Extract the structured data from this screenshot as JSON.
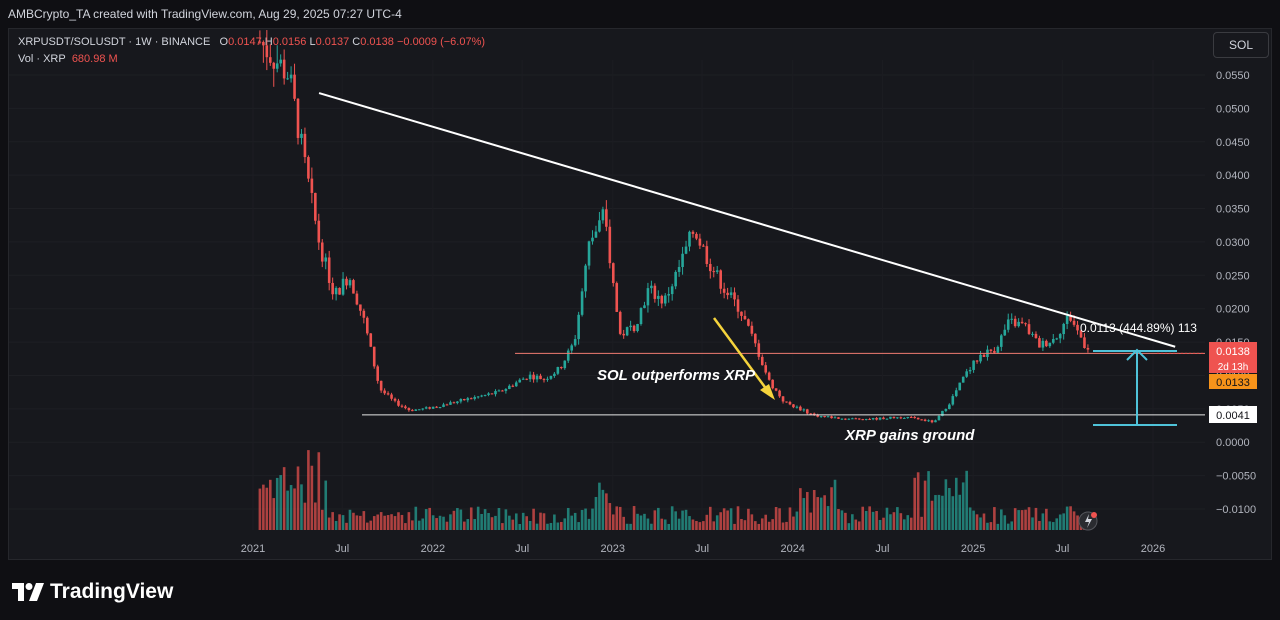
{
  "header": {
    "attribution": "AMBCrypto_TA created with TradingView.com, Aug 29, 2025 07:27 UTC-4"
  },
  "legend": {
    "symbol": "XRPUSDT/SOLUSDT · 1W · BINANCE",
    "o_label": "O",
    "o_value": "0.0147",
    "h_label": "H",
    "h_value": "0.0156",
    "l_label": "L",
    "l_value": "0.0137",
    "c_label": "C",
    "c_value": "0.0138",
    "change": "−0.0009 (−6.07%)",
    "vol_label": "Vol · XRP",
    "vol_value": "680.98 M"
  },
  "symbol_button": "SOL",
  "annotations": {
    "sol_outperforms": "SOL outperforms XRP",
    "xrp_gains": "XRP gains ground",
    "measure": "0.0113 (444.89%) 113"
  },
  "price_tags": {
    "last": "0.0138",
    "countdown": "2d 13h",
    "other": "0.0133",
    "support": "0.0041"
  },
  "brand": "TradingView",
  "colors": {
    "up": "#26a69a",
    "down": "#ef5350",
    "trend": "#ffffff",
    "measure": "#4fc3d9",
    "arrow": "#f5d33c"
  },
  "chart_data": {
    "type": "candlestick",
    "y_ticks": [
      "0.0550",
      "0.0500",
      "0.0450",
      "0.0400",
      "0.0350",
      "0.0300",
      "0.0250",
      "0.0200",
      "0.0150",
      "0.0100",
      "0.0050",
      "0.0000",
      "−0.0050",
      "−0.0100"
    ],
    "x_ticks": [
      "2021",
      "Jul",
      "2022",
      "Jul",
      "2023",
      "Jul",
      "2024",
      "Jul",
      "2025",
      "Jul",
      "2026"
    ],
    "ylim": [
      -0.0115,
      0.06
    ],
    "series": [
      {
        "name": "price",
        "points": [
          [
            "2021-01",
            0.06
          ],
          [
            "2021-03",
            0.055
          ],
          [
            "2021-04",
            0.042
          ],
          [
            "2021-05",
            0.03
          ],
          [
            "2021-06",
            0.022
          ],
          [
            "2021-07",
            0.025
          ],
          [
            "2021-08",
            0.018
          ],
          [
            "2021-09",
            0.008
          ],
          [
            "2021-10",
            0.006
          ],
          [
            "2021-11",
            0.0048
          ],
          [
            "2021-12",
            0.005
          ],
          [
            "2022-01",
            0.0055
          ],
          [
            "2022-03",
            0.0065
          ],
          [
            "2022-05",
            0.0075
          ],
          [
            "2022-07",
            0.01
          ],
          [
            "2022-08",
            0.0095
          ],
          [
            "2022-09",
            0.011
          ],
          [
            "2022-10",
            0.015
          ],
          [
            "2022-11",
            0.03
          ],
          [
            "2022-12",
            0.034
          ],
          [
            "2023-01",
            0.016
          ],
          [
            "2023-02",
            0.0175
          ],
          [
            "2023-03",
            0.023
          ],
          [
            "2023-04",
            0.021
          ],
          [
            "2023-05",
            0.026
          ],
          [
            "2023-06",
            0.032
          ],
          [
            "2023-07",
            0.027
          ],
          [
            "2023-08",
            0.023
          ],
          [
            "2023-09",
            0.02
          ],
          [
            "2023-10",
            0.015
          ],
          [
            "2023-11",
            0.009
          ],
          [
            "2023-12",
            0.006
          ],
          [
            "2024-01",
            0.005
          ],
          [
            "2024-02",
            0.004
          ],
          [
            "2024-04",
            0.0035
          ],
          [
            "2024-06",
            0.0035
          ],
          [
            "2024-08",
            0.0038
          ],
          [
            "2024-10",
            0.003
          ],
          [
            "2024-11",
            0.006
          ],
          [
            "2024-12",
            0.01
          ],
          [
            "2025-01",
            0.013
          ],
          [
            "2025-02",
            0.014
          ],
          [
            "2025-03",
            0.018
          ],
          [
            "2025-04",
            0.0175
          ],
          [
            "2025-05",
            0.0145
          ],
          [
            "2025-06",
            0.0155
          ],
          [
            "2025-07",
            0.019
          ],
          [
            "2025-08",
            0.0147
          ],
          [
            "2025-08-29",
            0.0138
          ]
        ]
      }
    ],
    "volume": "weekly bars, peaks ~2021-04 and ~2024-11",
    "lines": {
      "trendline": [
        [
          "2021-05",
          0.0523
        ],
        [
          "2026-02",
          0.0143
        ]
      ],
      "resistance": 0.0133,
      "support": 0.0041
    }
  }
}
